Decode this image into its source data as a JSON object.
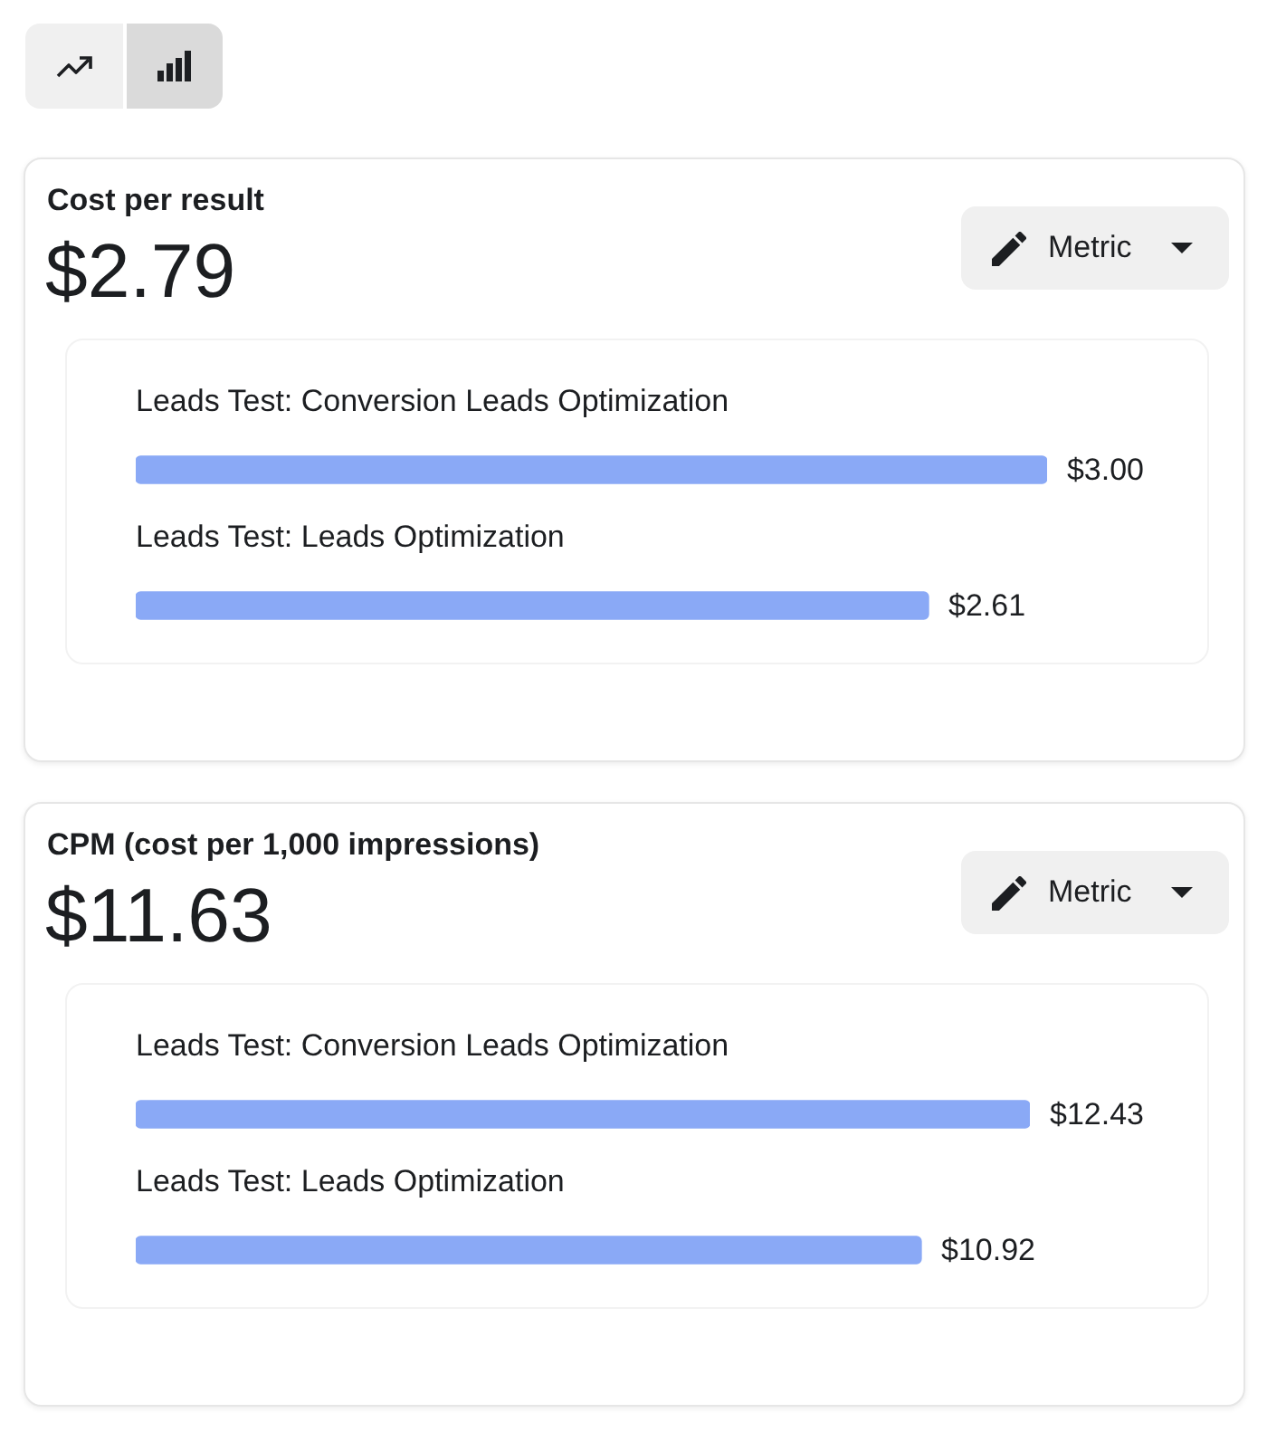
{
  "chart_data": [
    {
      "type": "bar",
      "orientation": "horizontal",
      "title": "Cost per result",
      "subtitle": "$2.79",
      "annotations": [
        "Metric"
      ],
      "categories": [
        "Leads Test: Conversion Leads Optimization",
        "Leads Test: Leads Optimization"
      ],
      "values": [
        3.0,
        2.61
      ],
      "value_labels": [
        "$3.00",
        "$2.61"
      ],
      "color": "#8aa9f6"
    },
    {
      "type": "bar",
      "orientation": "horizontal",
      "title": "CPM (cost per 1,000 impressions)",
      "subtitle": "$11.63",
      "annotations": [
        "Metric"
      ],
      "categories": [
        "Leads Test: Conversion Leads Optimization",
        "Leads Test: Leads Optimization"
      ],
      "values": [
        12.43,
        10.92
      ],
      "value_labels": [
        "$12.43",
        "$10.92"
      ],
      "color": "#8aa9f6"
    }
  ]
}
